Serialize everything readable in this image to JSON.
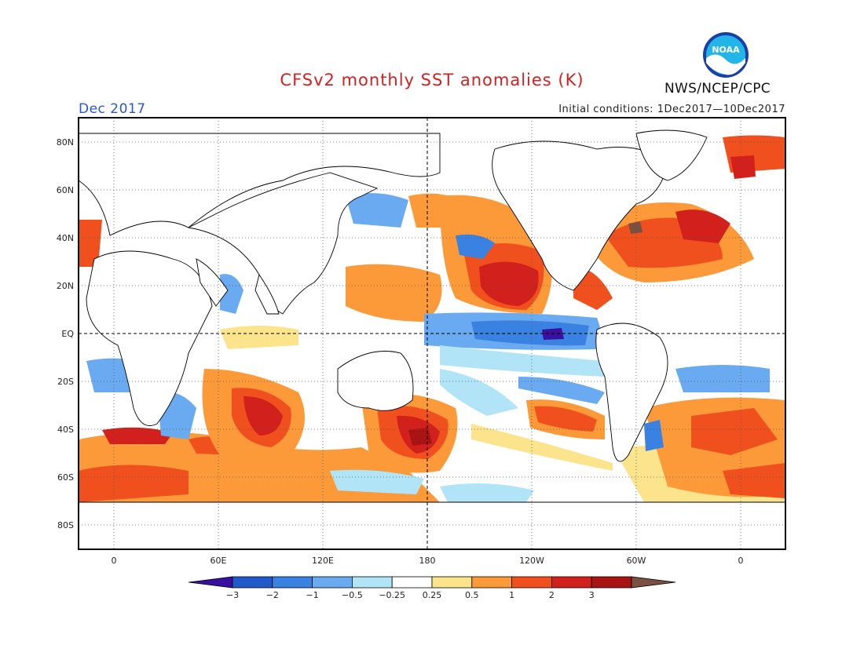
{
  "header": {
    "title": "CFSv2 monthly SST anomalies (K)",
    "month": "Dec 2017",
    "initial_conditions": "Initial conditions: 1Dec2017—10Dec2017",
    "agency": "NWS/NCEP/CPC",
    "logo_text": "NOAA",
    "logo_icon": "noaa-logo-icon"
  },
  "map": {
    "lat_labels": [
      "80N",
      "60N",
      "40N",
      "20N",
      "EQ",
      "20S",
      "40S",
      "60S",
      "80S"
    ],
    "lon_labels": [
      "0",
      "60E",
      "120E",
      "180",
      "120W",
      "60W",
      "0"
    ],
    "reference_lines": [
      "EQ",
      "180"
    ]
  },
  "colorbar": {
    "labels": [
      "−3",
      "−2",
      "−1",
      "−0.5",
      "−0.25",
      "0.25",
      "0.5",
      "1",
      "2",
      "3"
    ],
    "colors": [
      "#3a10a0",
      "#1f5ac8",
      "#3a82e2",
      "#6aaaf0",
      "#b0e4f6",
      "#ffffff",
      "#fce48c",
      "#fc9a3a",
      "#f0501e",
      "#d2201c",
      "#a81414",
      "#7a5040"
    ]
  }
}
